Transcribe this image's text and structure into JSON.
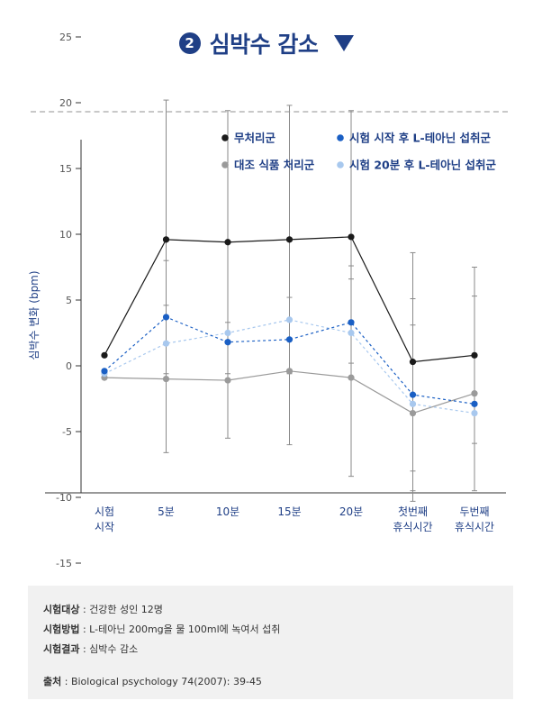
{
  "header": {
    "number": "2",
    "title": "심박수 감소"
  },
  "chart_data": {
    "type": "line",
    "ylabel": "심박수 변화 (bpm)",
    "xlabel": "",
    "ylim": [
      -20,
      30
    ],
    "yticks": [
      25,
      20,
      15,
      10,
      5,
      0,
      -5,
      -10,
      -15
    ],
    "categories": [
      "시험\n시작",
      "5분",
      "10분",
      "15분",
      "20분",
      "첫번째\n휴식시간",
      "두번째\n휴식시간"
    ],
    "legend_placement": "top-right",
    "series": [
      {
        "name": "무처리군",
        "color": "#1a1a1a",
        "dashed": false,
        "values": [
          0.8,
          9.6,
          9.4,
          9.6,
          9.8,
          0.3,
          0.8
        ],
        "error": [
          0,
          10.6,
          10.0,
          10.2,
          9.6,
          8.3,
          6.7
        ]
      },
      {
        "name": "시험 시작 후 L-테아닌 섭취군",
        "color": "#1a5fc4",
        "dashed": true,
        "values": [
          -0.4,
          3.7,
          1.8,
          2.0,
          3.3,
          -2.2,
          -2.9
        ],
        "error": [
          0,
          4.3,
          0,
          0,
          4.3,
          7.3,
          0
        ]
      },
      {
        "name": "대조 식품 처리군",
        "color": "#9a9a9a",
        "dashed": false,
        "values": [
          -0.9,
          -1.0,
          -1.1,
          -0.4,
          -0.9,
          -3.6,
          -2.1
        ],
        "error": [
          0,
          5.6,
          4.4,
          5.6,
          7.5,
          6.7,
          7.4
        ]
      },
      {
        "name": "시험 20분 후 L-테아닌 섭취군",
        "color": "#a8c8ee",
        "dashed": true,
        "values": [
          -0.6,
          1.7,
          2.5,
          3.5,
          2.5,
          -2.9,
          -3.6
        ],
        "error": [
          0,
          0,
          0,
          0,
          0,
          0,
          0
        ]
      }
    ]
  },
  "info": {
    "subject_label": "시험대상",
    "subject_value": " : 건강한 성인 12명",
    "method_label": "시험방법",
    "method_value": " : L-테아닌 200mg을 물 100ml에 녹여서 섭취",
    "result_label": "시험결과",
    "result_value": " : 심박수 감소",
    "source_label": "출처",
    "source_value": " : Biological psychology 74(2007): 39-45"
  }
}
